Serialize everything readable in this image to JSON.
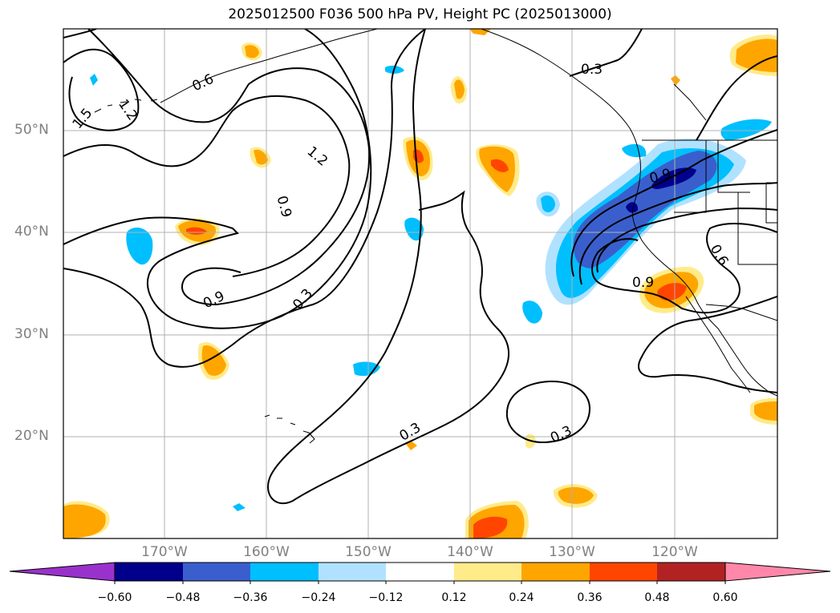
{
  "title": "2025012500 F036 500 hPa PV, Height PC (2025013000)",
  "lat_labels": [
    "50°N",
    "40°N",
    "30°N",
    "20°N"
  ],
  "lon_labels": [
    "170°W",
    "160°W",
    "150°W",
    "140°W",
    "130°W",
    "120°W"
  ],
  "contour_labels": [
    "0.6",
    "1.2",
    "1.5",
    "1.2",
    "0.9",
    "0.9",
    "0.3",
    "0.3",
    "0.3",
    "0.3",
    "0.9",
    "0.9",
    "0.6"
  ],
  "colorbar": {
    "tick_labels": [
      "−0.60",
      "−0.48",
      "−0.36",
      "−0.24",
      "−0.12",
      "0.12",
      "0.24",
      "0.36",
      "0.48",
      "0.60"
    ],
    "colors": [
      "#9932cc",
      "#00008b",
      "#3a5fcd",
      "#00bfff",
      "#b0e2ff",
      "#ffffff",
      "#ffeb8a",
      "#ffa500",
      "#ff4500",
      "#b22222",
      "#ff88aa"
    ]
  }
}
